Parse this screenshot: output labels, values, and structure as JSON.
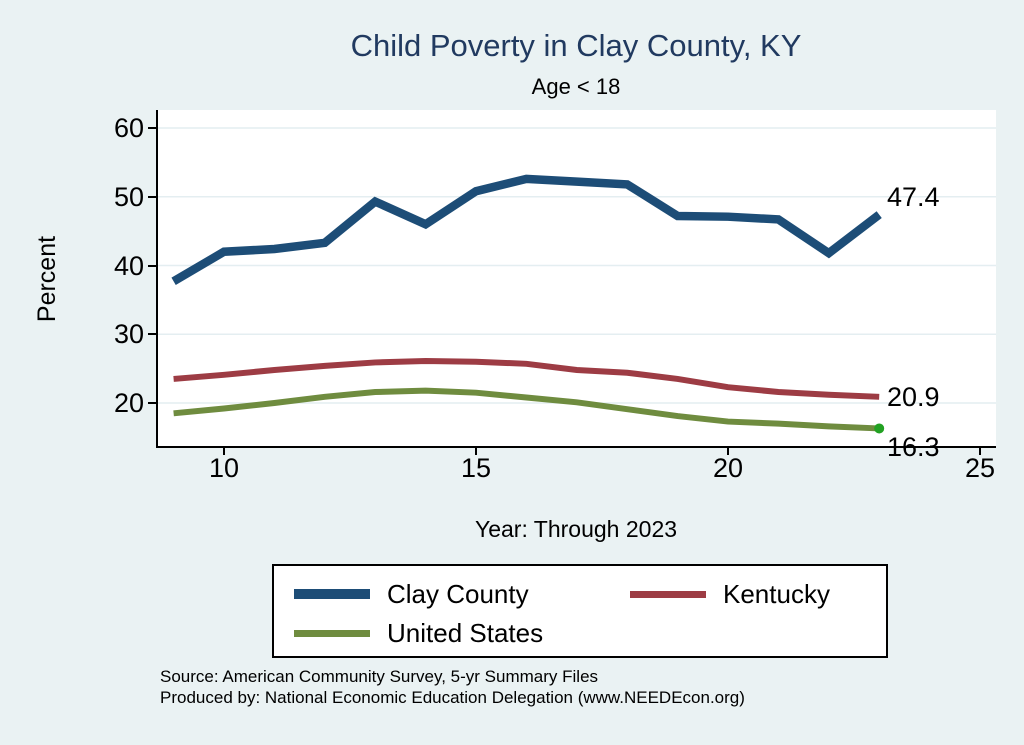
{
  "chart": {
    "title": "Child Poverty in Clay County, KY",
    "subtitle": "Age < 18",
    "ylabel": "Percent",
    "xlabel": "Year: Through 2023"
  },
  "footer": {
    "source_line": "Source: American Community Survey, 5-yr Summary Files",
    "produced_line": "Produced by: National Economic Education Delegation (www.NEEDEcon.org)"
  },
  "colors": {
    "figure_background": "#eaf2f3",
    "plot_background": "#ffffff",
    "gridline": "#e4eef1",
    "axis": "#000000",
    "title_text": "#213a60",
    "clay_county_line": "#1d4d77",
    "kentucky_line": "#9d3c44",
    "united_states_line": "#6f8c3f",
    "end_marker_dot": "#22a122"
  },
  "chart_data": {
    "type": "line",
    "title": "Child Poverty in Clay County, KY",
    "subtitle": "Age < 18",
    "xlabel": "Year: Through 2023",
    "ylabel": "Percent",
    "x": [
      2009,
      2010,
      2011,
      2012,
      2013,
      2014,
      2015,
      2016,
      2017,
      2018,
      2019,
      2020,
      2021,
      2022,
      2023
    ],
    "x_plotted": [
      9,
      10,
      11,
      12,
      13,
      14,
      15,
      16,
      17,
      18,
      19,
      20,
      21,
      22,
      23
    ],
    "series": [
      {
        "name": "Clay County",
        "color": "#1d4d77",
        "line_width": 8.5,
        "end_label": "47.4",
        "values": [
          37.7,
          42.0,
          42.4,
          43.3,
          49.3,
          46.0,
          50.8,
          52.6,
          52.2,
          51.8,
          47.2,
          47.1,
          46.7,
          41.8,
          47.4
        ]
      },
      {
        "name": "Kentucky",
        "color": "#9d3c44",
        "line_width": 6,
        "end_label": "20.9",
        "values": [
          23.5,
          24.1,
          24.8,
          25.4,
          25.9,
          26.1,
          26.0,
          25.7,
          24.8,
          24.4,
          23.5,
          22.3,
          21.6,
          21.2,
          20.9
        ]
      },
      {
        "name": "United States",
        "color": "#6f8c3f",
        "line_width": 6,
        "end_label": "16.3",
        "end_marker_color": "#22a122",
        "values": [
          18.5,
          19.2,
          20.0,
          20.9,
          21.6,
          21.8,
          21.5,
          20.8,
          20.1,
          19.1,
          18.1,
          17.3,
          17.0,
          16.6,
          16.3
        ]
      }
    ],
    "xticks": [
      10,
      15,
      20,
      25
    ],
    "yticks": [
      20,
      30,
      40,
      50,
      60
    ],
    "xlim": [
      8.7,
      25.3
    ],
    "ylim": [
      13.75,
      62.6
    ],
    "grid": true,
    "legend_position": "bottom"
  }
}
